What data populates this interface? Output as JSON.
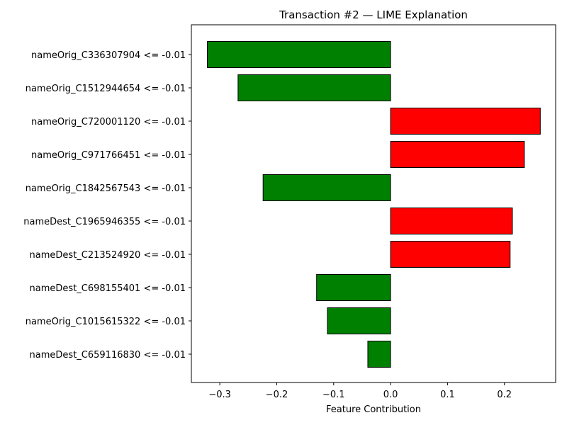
{
  "chart_data": {
    "type": "bar",
    "orientation": "horizontal",
    "title": "Transaction #2 — LIME Explanation",
    "xlabel": "Feature Contribution",
    "ylabel": "",
    "xlim": [
      -0.35,
      0.29
    ],
    "xticks": [
      -0.3,
      -0.2,
      -0.1,
      0.0,
      0.1,
      0.2
    ],
    "xtick_labels": [
      "−0.3",
      "−0.2",
      "−0.1",
      "0.0",
      "0.1",
      "0.2"
    ],
    "grid": false,
    "categories": [
      "nameOrig_C336307904 <= -0.01",
      "nameOrig_C1512944654 <= -0.01",
      "nameOrig_C720001120 <= -0.01",
      "nameOrig_C971766451 <= -0.01",
      "nameOrig_C1842567543 <= -0.01",
      "nameDest_C1965946355 <= -0.01",
      "nameDest_C213524920 <= -0.01",
      "nameDest_C698155401 <= -0.01",
      "nameOrig_C1015615322 <= -0.01",
      "nameDest_C659116830 <= -0.01"
    ],
    "values": [
      -0.322,
      -0.268,
      0.263,
      0.235,
      -0.224,
      0.214,
      0.21,
      -0.13,
      -0.111,
      -0.04
    ],
    "colors": {
      "positive": "#ff0000",
      "negative": "#008000",
      "edge": "#000000"
    }
  }
}
